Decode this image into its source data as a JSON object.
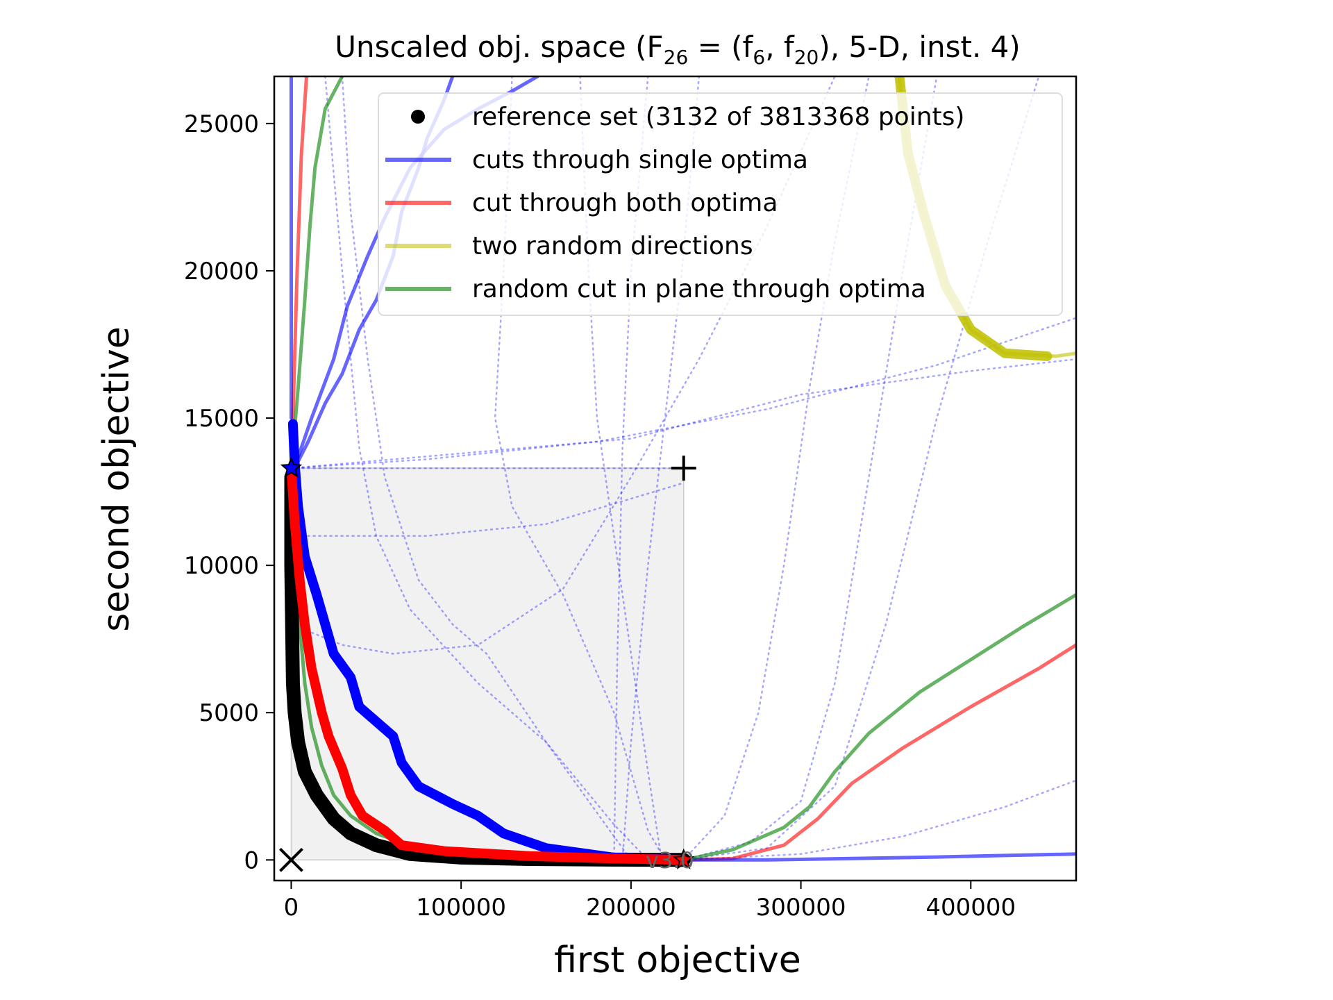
{
  "chart_data": {
    "type": "line",
    "title": "Unscaled obj. space (F",
    "title_sub": "26",
    "title_eq": " = (f",
    "title_sub2": "6",
    "title_mid": ", f",
    "title_sub3": "20",
    "title_tail": "), 5-D, inst. 4)",
    "xlabel": "first objective",
    "ylabel": "second objective",
    "xlim": [
      -10000,
      462000
    ],
    "ylim": [
      -700,
      26600
    ],
    "x_ticks": [
      {
        "value": 0,
        "label": "0"
      },
      {
        "value": 100000,
        "label": "100000"
      },
      {
        "value": 200000,
        "label": "200000"
      },
      {
        "value": 300000,
        "label": "300000"
      },
      {
        "value": 400000,
        "label": "400000"
      }
    ],
    "y_ticks": [
      {
        "value": 0,
        "label": "0"
      },
      {
        "value": 5000,
        "label": "5000"
      },
      {
        "value": 10000,
        "label": "10000"
      },
      {
        "value": 15000,
        "label": "15000"
      },
      {
        "value": 20000,
        "label": "20000"
      },
      {
        "value": 25000,
        "label": "25000"
      }
    ],
    "legend_position": "upper-right",
    "legend": [
      {
        "label": "reference set (3132 of 3813368 points)",
        "kind": "dot",
        "color": "#000000"
      },
      {
        "label": "cuts through single optima",
        "kind": "line",
        "color": "#0000ff"
      },
      {
        "label": "cut through both optima",
        "kind": "line",
        "color": "#ff0000"
      },
      {
        "label": "two random directions",
        "kind": "line",
        "color": "#bfbf00"
      },
      {
        "label": "random cut in plane through optima",
        "kind": "line",
        "color": "#008000"
      }
    ],
    "version_label": "v3.0",
    "ideal_point": [
      0,
      0
    ],
    "nadir_point": [
      231000,
      13300
    ],
    "optimum_1": [
      0,
      13300
    ],
    "optimum_2": [
      231000,
      0
    ],
    "series": [
      {
        "name": "reference set (3132 of 3813368 points)",
        "kind": "reference",
        "color": "#000000",
        "points": [
          [
            0,
            13000
          ],
          [
            0,
            10000
          ],
          [
            500,
            8000
          ],
          [
            1000,
            6000
          ],
          [
            2000,
            5000
          ],
          [
            4000,
            4000
          ],
          [
            8000,
            3000
          ],
          [
            15000,
            2200
          ],
          [
            25000,
            1400
          ],
          [
            35000,
            900
          ],
          [
            50000,
            500
          ],
          [
            70000,
            200
          ],
          [
            100000,
            80
          ],
          [
            140000,
            30
          ],
          [
            190000,
            10
          ],
          [
            231000,
            0
          ]
        ]
      },
      {
        "name": "cuts through single optima",
        "kind": "thick",
        "color": "#0000ff",
        "points": [
          [
            1000,
            14800
          ],
          [
            2000,
            13500
          ],
          [
            4000,
            12000
          ],
          [
            8000,
            10300
          ],
          [
            15000,
            9000
          ],
          [
            25000,
            7000
          ],
          [
            35000,
            6200
          ],
          [
            40000,
            5200
          ],
          [
            60000,
            4200
          ],
          [
            65000,
            3300
          ],
          [
            75000,
            2500
          ],
          [
            95000,
            1900
          ],
          [
            110000,
            1500
          ],
          [
            125000,
            900
          ],
          [
            150000,
            400
          ],
          [
            190000,
            80
          ],
          [
            231000,
            0
          ]
        ]
      },
      {
        "name": "cut through both optima",
        "kind": "thick",
        "color": "#ff0000",
        "points": [
          [
            0,
            13300
          ],
          [
            2000,
            11500
          ],
          [
            5000,
            9500
          ],
          [
            8000,
            8000
          ],
          [
            12000,
            6500
          ],
          [
            18000,
            5000
          ],
          [
            22000,
            4200
          ],
          [
            30000,
            3100
          ],
          [
            35000,
            2200
          ],
          [
            42000,
            1500
          ],
          [
            55000,
            1000
          ],
          [
            65000,
            500
          ],
          [
            90000,
            300
          ],
          [
            140000,
            130
          ],
          [
            190000,
            50
          ],
          [
            231000,
            0
          ]
        ]
      },
      {
        "name": "cut through both optima",
        "kind": "thin",
        "color": "#ff0000",
        "points": [
          [
            0,
            13300
          ],
          [
            1500,
            16000
          ],
          [
            3500,
            20000
          ],
          [
            6000,
            24000
          ],
          [
            9000,
            26600
          ]
        ]
      },
      {
        "name": "cut through both optima",
        "kind": "thin",
        "color": "#ff0000",
        "points": [
          [
            231000,
            0
          ],
          [
            260000,
            50
          ],
          [
            290000,
            500
          ],
          [
            310000,
            1400
          ],
          [
            330000,
            2600
          ],
          [
            360000,
            3800
          ],
          [
            400000,
            5200
          ],
          [
            440000,
            6500
          ],
          [
            462000,
            7300
          ]
        ]
      },
      {
        "name": "cuts through single optima",
        "kind": "thin",
        "color": "#0000ff",
        "points": [
          [
            0,
            26600
          ],
          [
            0,
            20000
          ],
          [
            0,
            15000
          ]
        ]
      },
      {
        "name": "cuts through single optima",
        "kind": "thin",
        "color": "#0000ff",
        "points": [
          [
            2000,
            13300
          ],
          [
            10000,
            14200
          ],
          [
            20000,
            15500
          ],
          [
            30000,
            16500
          ],
          [
            40000,
            18000
          ],
          [
            50000,
            19000
          ],
          [
            60000,
            20500
          ],
          [
            65000,
            22000
          ],
          [
            75000,
            23500
          ],
          [
            80000,
            24500
          ],
          [
            90000,
            25800
          ],
          [
            95000,
            26600
          ]
        ]
      },
      {
        "name": "cuts through single optima",
        "kind": "thin",
        "color": "#0000ff",
        "points": [
          [
            3000,
            13500
          ],
          [
            12000,
            15000
          ],
          [
            25000,
            17000
          ],
          [
            33000,
            18800
          ],
          [
            45000,
            20500
          ],
          [
            55000,
            21800
          ],
          [
            70000,
            23500
          ],
          [
            90000,
            24800
          ],
          [
            110000,
            25500
          ],
          [
            130000,
            26100
          ],
          [
            145000,
            26600
          ]
        ]
      },
      {
        "name": "cuts through single optima",
        "kind": "thin",
        "color": "#0000ff",
        "points": [
          [
            231000,
            0
          ],
          [
            280000,
            0
          ],
          [
            330000,
            50
          ],
          [
            380000,
            100
          ],
          [
            420000,
            150
          ],
          [
            462000,
            200
          ]
        ]
      },
      {
        "name": "random cut in plane through optima",
        "kind": "thin",
        "color": "#008000",
        "points": [
          [
            0,
            13300
          ],
          [
            4000,
            16000
          ],
          [
            8000,
            19000
          ],
          [
            11000,
            21500
          ],
          [
            14000,
            23500
          ],
          [
            20000,
            25500
          ],
          [
            30000,
            26600
          ]
        ]
      },
      {
        "name": "random cut in plane through optima",
        "kind": "thin",
        "color": "#008000",
        "points": [
          [
            0,
            13300
          ],
          [
            3000,
            10000
          ],
          [
            5000,
            8000
          ],
          [
            8000,
            6000
          ],
          [
            12000,
            4500
          ],
          [
            18000,
            3200
          ],
          [
            25000,
            2200
          ],
          [
            35000,
            1500
          ],
          [
            50000,
            900
          ],
          [
            65000,
            600
          ],
          [
            100000,
            250
          ],
          [
            150000,
            100
          ],
          [
            200000,
            30
          ],
          [
            231000,
            0
          ]
        ]
      },
      {
        "name": "random cut in plane through optima",
        "kind": "thin",
        "color": "#008000",
        "points": [
          [
            231000,
            0
          ],
          [
            260000,
            350
          ],
          [
            290000,
            1100
          ],
          [
            305000,
            1800
          ],
          [
            320000,
            3000
          ],
          [
            340000,
            4300
          ],
          [
            370000,
            5700
          ],
          [
            400000,
            6800
          ],
          [
            430000,
            7900
          ],
          [
            462000,
            9000
          ]
        ]
      },
      {
        "name": "two random directions",
        "kind": "thin",
        "color": "#bfbf00",
        "points": [
          [
            358000,
            26600
          ],
          [
            363000,
            24000
          ],
          [
            372000,
            22000
          ],
          [
            385000,
            19500
          ],
          [
            400000,
            18000
          ],
          [
            420000,
            17200
          ],
          [
            450000,
            17100
          ],
          [
            462000,
            17200
          ]
        ]
      },
      {
        "name": "two random directions",
        "kind": "thick",
        "color": "#bfbf00",
        "points": [
          [
            358000,
            26600
          ],
          [
            363000,
            24000
          ],
          [
            372000,
            22000
          ],
          [
            385000,
            19500
          ],
          [
            400000,
            18000
          ],
          [
            420000,
            17200
          ],
          [
            445000,
            17100
          ]
        ]
      }
    ],
    "dotted_paths": [
      [
        [
          0,
          13300
        ],
        [
          60000,
          13300
        ],
        [
          120000,
          13300
        ],
        [
          231000,
          13300
        ]
      ],
      [
        [
          0,
          13300
        ],
        [
          80000,
          13600
        ],
        [
          180000,
          14200
        ],
        [
          280000,
          15300
        ],
        [
          380000,
          16800
        ],
        [
          462000,
          18400
        ]
      ],
      [
        [
          0,
          13300
        ],
        [
          100000,
          13800
        ],
        [
          200000,
          14300
        ],
        [
          300000,
          15800
        ],
        [
          400000,
          16600
        ],
        [
          462000,
          17000
        ]
      ],
      [
        [
          0,
          11000
        ],
        [
          80000,
          11000
        ],
        [
          150000,
          11400
        ],
        [
          231000,
          12800
        ]
      ],
      [
        [
          0,
          8000
        ],
        [
          30000,
          7300
        ],
        [
          60000,
          7000
        ],
        [
          110000,
          7300
        ],
        [
          160000,
          9200
        ],
        [
          200000,
          13000
        ],
        [
          240000,
          17000
        ],
        [
          280000,
          21500
        ],
        [
          320000,
          26600
        ]
      ],
      [
        [
          20000,
          26600
        ],
        [
          30000,
          20000
        ],
        [
          40000,
          14000
        ],
        [
          50000,
          11000
        ],
        [
          70000,
          8500
        ],
        [
          110000,
          6000
        ],
        [
          150000,
          4000
        ],
        [
          190000,
          1200
        ],
        [
          210000,
          0
        ]
      ],
      [
        [
          130000,
          26600
        ],
        [
          125000,
          20000
        ],
        [
          120000,
          15000
        ],
        [
          130000,
          12000
        ],
        [
          160000,
          9000
        ],
        [
          190000,
          5000
        ],
        [
          210000,
          1000
        ],
        [
          220000,
          0
        ]
      ],
      [
        [
          170000,
          26600
        ],
        [
          175000,
          20000
        ],
        [
          180000,
          15000
        ],
        [
          190000,
          11000
        ],
        [
          200000,
          7000
        ],
        [
          210000,
          3000
        ],
        [
          218000,
          0
        ]
      ],
      [
        [
          210000,
          26600
        ],
        [
          200000,
          20000
        ],
        [
          195000,
          14000
        ],
        [
          192000,
          7000
        ],
        [
          190000,
          0
        ]
      ],
      [
        [
          240000,
          26600
        ],
        [
          230000,
          20000
        ],
        [
          220000,
          15000
        ],
        [
          210000,
          10000
        ],
        [
          200000,
          4000
        ],
        [
          195000,
          0
        ]
      ],
      [
        [
          30000,
          26600
        ],
        [
          35000,
          22000
        ],
        [
          45000,
          17000
        ],
        [
          55000,
          13000
        ],
        [
          75000,
          9500
        ],
        [
          95000,
          8000
        ],
        [
          115000,
          7000
        ],
        [
          150000,
          4000
        ],
        [
          190000,
          800
        ],
        [
          200000,
          0
        ]
      ],
      [
        [
          231000,
          0
        ],
        [
          255000,
          1500
        ],
        [
          275000,
          5000
        ],
        [
          290000,
          10000
        ],
        [
          305000,
          16000
        ],
        [
          320000,
          21000
        ],
        [
          340000,
          26600
        ]
      ],
      [
        [
          231000,
          0
        ],
        [
          270000,
          600
        ],
        [
          300000,
          2000
        ],
        [
          320000,
          6000
        ],
        [
          340000,
          13000
        ],
        [
          360000,
          20000
        ],
        [
          380000,
          26600
        ]
      ],
      [
        [
          231000,
          0
        ],
        [
          300000,
          200
        ],
        [
          360000,
          800
        ],
        [
          420000,
          1800
        ],
        [
          462000,
          2700
        ]
      ],
      [
        [
          231000,
          0
        ],
        [
          280000,
          400
        ],
        [
          320000,
          2500
        ],
        [
          350000,
          8000
        ],
        [
          380000,
          15000
        ],
        [
          410000,
          21000
        ],
        [
          440000,
          26600
        ]
      ]
    ]
  }
}
